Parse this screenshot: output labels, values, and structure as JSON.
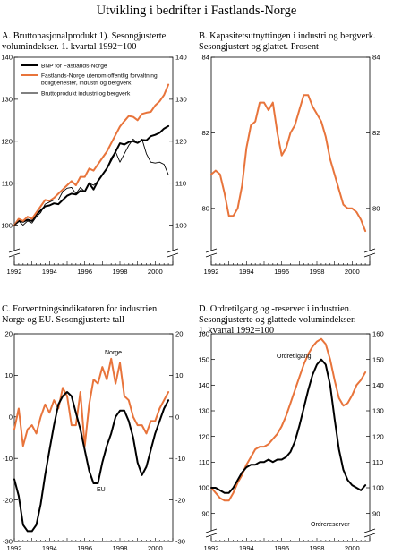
{
  "page": {
    "title": "Utvikling i bedrifter i Fastlands-Norge"
  },
  "chart_data": [
    {
      "id": "A",
      "type": "line",
      "title_lines": [
        "A.   Bruttonasjonalprodukt 1). Sesongjusterte",
        "      volumindekser. 1. kvartal 1992=100"
      ],
      "x_ticks": [
        "1992",
        "1994",
        "1996",
        "1998",
        "2000"
      ],
      "y_ticks": [
        100,
        110,
        120,
        130,
        140
      ],
      "ylim": [
        95,
        140
      ],
      "xlim": [
        1992.0,
        2001.0
      ],
      "axis_break": true,
      "legend": [
        "BNP for Fastlands-Norge",
        "Fastlands-Norge utenom offentlig forvaltning,",
        "boligtjenester, industri og bergverk",
        "Bruttoprodukt industri og bergverk"
      ],
      "series": [
        {
          "name": "BNP for Fastlands-Norge",
          "color": "#000000",
          "width": 2.0,
          "x": [
            1992.0,
            1992.25,
            1992.5,
            1992.75,
            1993.0,
            1993.25,
            1993.5,
            1993.75,
            1994.0,
            1994.25,
            1994.5,
            1994.75,
            1995.0,
            1995.25,
            1995.5,
            1995.75,
            1996.0,
            1996.25,
            1996.5,
            1996.75,
            1997.0,
            1997.25,
            1997.5,
            1997.75,
            1998.0,
            1998.25,
            1998.5,
            1998.75,
            1999.0,
            1999.25,
            1999.5,
            1999.75,
            2000.0,
            2000.25,
            2000.5,
            2000.75
          ],
          "y": [
            100.0,
            101.0,
            100.8,
            101.3,
            101.0,
            102.5,
            103.5,
            104.5,
            104.7,
            105.2,
            105.0,
            106.0,
            107.0,
            107.5,
            107.3,
            108.2,
            108.0,
            110.0,
            108.5,
            110.5,
            112.0,
            113.5,
            115.5,
            117.5,
            119.5,
            119.2,
            119.8,
            120.0,
            119.6,
            120.3,
            120.2,
            121.2,
            121.5,
            122.0,
            123.0,
            123.6
          ]
        },
        {
          "name": "Fastlands-Norge utenom offentlig forvaltning, boligtjenester, industri og bergverk",
          "color": "#e8743b",
          "width": 2.0,
          "x": [
            1992.0,
            1992.25,
            1992.5,
            1992.75,
            1993.0,
            1993.25,
            1993.5,
            1993.75,
            1994.0,
            1994.25,
            1994.5,
            1994.75,
            1995.0,
            1995.25,
            1995.5,
            1995.75,
            1996.0,
            1996.25,
            1996.5,
            1996.75,
            1997.0,
            1997.25,
            1997.5,
            1997.75,
            1998.0,
            1998.25,
            1998.5,
            1998.75,
            1999.0,
            1999.25,
            1999.5,
            1999.75,
            2000.0,
            2000.25,
            2000.5,
            2000.75
          ],
          "y": [
            100.0,
            101.5,
            101.0,
            102.0,
            101.5,
            103.0,
            104.5,
            106.0,
            105.8,
            106.5,
            107.5,
            108.5,
            109.5,
            110.5,
            109.5,
            111.5,
            111.5,
            113.5,
            113.0,
            114.5,
            116.0,
            117.5,
            119.5,
            121.5,
            123.5,
            124.8,
            126.0,
            125.8,
            125.0,
            126.5,
            126.8,
            127.0,
            128.5,
            129.5,
            131.0,
            133.5
          ]
        },
        {
          "name": "Bruttoprodukt industri og bergverk",
          "color": "#000000",
          "width": 0.9,
          "x": [
            1992.0,
            1992.25,
            1992.5,
            1992.75,
            1993.0,
            1993.25,
            1993.5,
            1993.75,
            1994.0,
            1994.25,
            1994.5,
            1994.75,
            1995.0,
            1995.25,
            1995.5,
            1995.75,
            1996.0,
            1996.25,
            1996.5,
            1996.75,
            1997.0,
            1997.25,
            1997.5,
            1997.75,
            1998.0,
            1998.25,
            1998.5,
            1998.75,
            1999.0,
            1999.25,
            1999.5,
            1999.75,
            2000.0,
            2000.25,
            2000.5,
            2000.75
          ],
          "y": [
            100.0,
            101.0,
            100.0,
            101.0,
            100.5,
            102.0,
            103.0,
            105.0,
            105.5,
            106.0,
            106.0,
            108.0,
            108.8,
            109.0,
            107.5,
            109.0,
            108.0,
            110.0,
            109.5,
            110.5,
            112.0,
            113.5,
            116.0,
            117.5,
            115.0,
            117.0,
            119.0,
            120.5,
            119.5,
            120.5,
            117.0,
            115.0,
            114.8,
            115.0,
            114.5,
            112.0
          ]
        }
      ]
    },
    {
      "id": "B",
      "type": "line",
      "title_lines": [
        "B.   Kapasitetsutnyttingen i industri og bergverk.",
        "      Sesongjustert og glattet. Prosent"
      ],
      "x_ticks": [
        "1992",
        "1994",
        "1996",
        "1998",
        "2000"
      ],
      "y_ticks": [
        80,
        82,
        84
      ],
      "ylim": [
        79.0,
        84.0
      ],
      "xlim": [
        1992.0,
        2001.0
      ],
      "axis_break": true,
      "series": [
        {
          "name": "",
          "color": "#e8743b",
          "width": 2.0,
          "x": [
            1992.0,
            1992.25,
            1992.5,
            1992.75,
            1993.0,
            1993.25,
            1993.5,
            1993.75,
            1994.0,
            1994.25,
            1994.5,
            1994.75,
            1995.0,
            1995.25,
            1995.5,
            1995.75,
            1996.0,
            1996.25,
            1996.5,
            1996.75,
            1997.0,
            1997.25,
            1997.5,
            1997.75,
            1998.0,
            1998.25,
            1998.5,
            1998.75,
            1999.0,
            1999.25,
            1999.5,
            1999.75,
            2000.0,
            2000.25,
            2000.5,
            2000.75
          ],
          "y": [
            80.9,
            81.0,
            80.9,
            80.4,
            79.8,
            79.8,
            80.0,
            80.6,
            81.6,
            82.2,
            82.3,
            82.8,
            82.8,
            82.6,
            82.8,
            82.0,
            81.4,
            81.6,
            82.0,
            82.2,
            82.6,
            83.0,
            83.0,
            82.7,
            82.5,
            82.3,
            81.9,
            81.3,
            80.9,
            80.5,
            80.1,
            80.0,
            80.0,
            79.9,
            79.7,
            79.4
          ]
        }
      ]
    },
    {
      "id": "C",
      "type": "line",
      "title_lines": [
        "C.   Forventningsindikatoren for industrien.",
        "      Norge og EU. Sesongjusterte tall"
      ],
      "x_ticks": [
        "1992",
        "1994",
        "1996",
        "1998",
        "2000"
      ],
      "y_ticks": [
        -30,
        -20,
        -10,
        0,
        10,
        20
      ],
      "ylim": [
        -30,
        20
      ],
      "xlim": [
        1992.0,
        2001.0
      ],
      "axis_break": false,
      "series_labels": [
        "Norge",
        "EU"
      ],
      "series": [
        {
          "name": "Norge",
          "color": "#e8743b",
          "width": 2.0,
          "x": [
            1992.0,
            1992.25,
            1992.5,
            1992.75,
            1993.0,
            1993.25,
            1993.5,
            1993.75,
            1994.0,
            1994.25,
            1994.5,
            1994.75,
            1995.0,
            1995.25,
            1995.5,
            1995.75,
            1996.0,
            1996.25,
            1996.5,
            1996.75,
            1997.0,
            1997.25,
            1997.5,
            1997.75,
            1998.0,
            1998.25,
            1998.5,
            1998.75,
            1999.0,
            1999.25,
            1999.5,
            1999.75,
            2000.0,
            2000.25,
            2000.5,
            2000.75
          ],
          "y": [
            -3,
            2,
            -7,
            -3,
            -2,
            -4,
            0,
            3,
            1,
            4,
            2,
            7,
            5,
            -2,
            -2,
            6,
            -7,
            3,
            9,
            8,
            12,
            9,
            14,
            8,
            13,
            5,
            4,
            0,
            -2,
            -2,
            -4,
            -1,
            -1,
            2,
            4,
            6
          ]
        },
        {
          "name": "EU",
          "color": "#000000",
          "width": 2.0,
          "x": [
            1992.0,
            1992.25,
            1992.5,
            1992.75,
            1993.0,
            1993.25,
            1993.5,
            1993.75,
            1994.0,
            1994.25,
            1994.5,
            1994.75,
            1995.0,
            1995.25,
            1995.5,
            1995.75,
            1996.0,
            1996.25,
            1996.5,
            1996.75,
            1997.0,
            1997.25,
            1997.5,
            1997.75,
            1998.0,
            1998.25,
            1998.5,
            1998.75,
            1999.0,
            1999.25,
            1999.5,
            1999.75,
            2000.0,
            2000.25,
            2000.5,
            2000.75
          ],
          "y": [
            -15,
            -19,
            -26,
            -27.5,
            -27.5,
            -26,
            -21,
            -14,
            -8,
            -2,
            3,
            5,
            6,
            5,
            1,
            -3,
            -8,
            -13,
            -16,
            -16,
            -11,
            -7,
            -4,
            0,
            1.5,
            1.5,
            -1,
            -5,
            -11,
            -14,
            -12,
            -8,
            -4,
            -1,
            2,
            4
          ]
        }
      ]
    },
    {
      "id": "D",
      "type": "line",
      "title_lines": [
        "D.   Ordretilgang og -reserver i industrien.",
        "      Sesongjusterte og glattede volumindekser.",
        "      1. kvartal 1992=100"
      ],
      "x_ticks": [
        "1992",
        "1994",
        "1996",
        "1998",
        "2000"
      ],
      "y_ticks": [
        90,
        100,
        110,
        120,
        130,
        140,
        150,
        160
      ],
      "ylim": [
        85,
        160
      ],
      "xlim": [
        1992.0,
        2001.0
      ],
      "axis_break": true,
      "series_labels": [
        "Ordretilgang",
        "Ordrereserver"
      ],
      "series": [
        {
          "name": "Ordretilgang",
          "color": "#e8743b",
          "width": 2.0,
          "x": [
            1992.0,
            1992.25,
            1992.5,
            1992.75,
            1993.0,
            1993.25,
            1993.5,
            1993.75,
            1994.0,
            1994.25,
            1994.5,
            1994.75,
            1995.0,
            1995.25,
            1995.5,
            1995.75,
            1996.0,
            1996.25,
            1996.5,
            1996.75,
            1997.0,
            1997.25,
            1997.5,
            1997.75,
            1998.0,
            1998.25,
            1998.5,
            1998.75,
            1999.0,
            1999.25,
            1999.5,
            1999.75,
            2000.0,
            2000.25,
            2000.5,
            2000.75
          ],
          "y": [
            100,
            98,
            96,
            95,
            95,
            98,
            102,
            105,
            109,
            112,
            115,
            116,
            116,
            117,
            119,
            121,
            124,
            128,
            133,
            138,
            143,
            148,
            152,
            155,
            157,
            158,
            156,
            150,
            142,
            135,
            132,
            133,
            136,
            140,
            142,
            145
          ]
        },
        {
          "name": "Ordrereserver",
          "color": "#000000",
          "width": 2.0,
          "x": [
            1992.0,
            1992.25,
            1992.5,
            1992.75,
            1993.0,
            1993.25,
            1993.5,
            1993.75,
            1994.0,
            1994.25,
            1994.5,
            1994.75,
            1995.0,
            1995.25,
            1995.5,
            1995.75,
            1996.0,
            1996.25,
            1996.5,
            1996.75,
            1997.0,
            1997.25,
            1997.5,
            1997.75,
            1998.0,
            1998.25,
            1998.5,
            1998.75,
            1999.0,
            1999.25,
            1999.5,
            1999.75,
            2000.0,
            2000.25,
            2000.5,
            2000.75
          ],
          "y": [
            100,
            100,
            99,
            98,
            98,
            100,
            103,
            106,
            108,
            109,
            109,
            110,
            110,
            111,
            110,
            111,
            111,
            112,
            114,
            118,
            124,
            131,
            138,
            144,
            148,
            150,
            148,
            140,
            127,
            115,
            107,
            103,
            101,
            100,
            99,
            101
          ]
        }
      ]
    }
  ]
}
